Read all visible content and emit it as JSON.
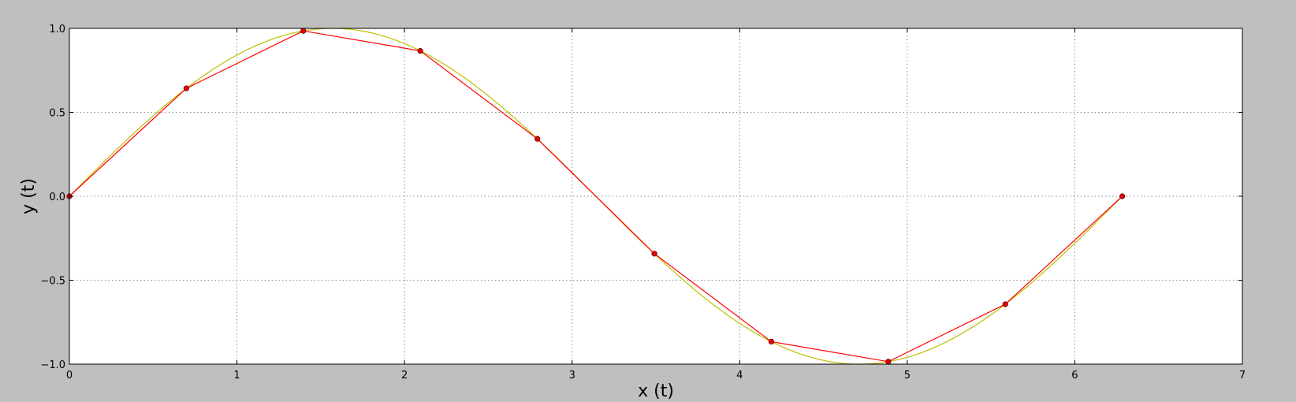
{
  "chart_data": {
    "type": "line",
    "xlabel": "x (t)",
    "ylabel": "y (t)",
    "xlim": [
      0,
      7
    ],
    "ylim": [
      -1.0,
      1.0
    ],
    "x_ticks": [
      "0",
      "1",
      "2",
      "3",
      "4",
      "5",
      "6",
      "7"
    ],
    "y_ticks": [
      "−1.0",
      "−0.5",
      "0.0",
      "0.5",
      "1.0"
    ],
    "grid": true,
    "series": [
      {
        "kind": "curve",
        "function": "sin(x)",
        "x_range": [
          0,
          6.2832
        ],
        "color": "#bfbf00"
      },
      {
        "kind": "markers-line",
        "color": "#ff0000",
        "x": [
          0.0,
          0.698,
          1.396,
          2.094,
          2.793,
          3.491,
          4.189,
          4.887,
          5.585,
          6.283
        ],
        "y": [
          0.0,
          0.643,
          0.985,
          0.866,
          0.342,
          -0.342,
          -0.866,
          -0.985,
          -0.643,
          0.0
        ]
      }
    ]
  },
  "colors": {
    "figure_bg": "#bfbfbf",
    "axes_bg": "#ffffff",
    "grid": "#8c8c8c"
  }
}
